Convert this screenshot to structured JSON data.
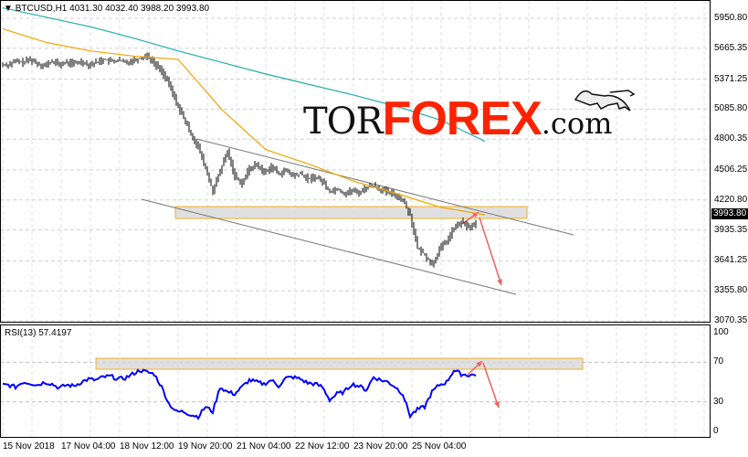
{
  "chart_data": [
    {
      "type": "bar",
      "symbol_header": "BTCUSD,H1  4031.30 4032.40 3988.20 3993.80",
      "symbol": "BTCUSD",
      "timeframe": "H1",
      "ohlc": {
        "open": 4031.3,
        "high": 4032.4,
        "low": 3988.2,
        "close": 3993.8
      },
      "current_price_label": "3993.80",
      "y_ticks": [
        "5950.80",
        "5665.35",
        "5371.25",
        "5085.80",
        "4800.35",
        "4506.25",
        "4220.80",
        "3935.35",
        "3641.25",
        "3355.80",
        "3070.35"
      ],
      "ylim": [
        3070.35,
        5950.8
      ],
      "grid": true,
      "step_hours": 4,
      "close": [
        5510,
        5540,
        5530,
        5560,
        5520,
        5500,
        5540,
        5510,
        5530,
        5520,
        5540,
        5510,
        5530,
        5560,
        5540,
        5550,
        5530,
        5550,
        5570,
        5600,
        5520,
        5450,
        5320,
        5150,
        5000,
        4850,
        4720,
        4520,
        4300,
        4500,
        4680,
        4450,
        4380,
        4520,
        4560,
        4480,
        4540,
        4470,
        4500,
        4450,
        4470,
        4420,
        4440,
        4400,
        4300,
        4330,
        4280,
        4310,
        4290,
        4340,
        4360,
        4320,
        4290,
        4270,
        4220,
        4080,
        3760,
        3700,
        3600,
        3750,
        3830,
        3950,
        4010,
        3960,
        3993.8
      ],
      "ma_fast": [
        5850,
        5720,
        5640,
        5590,
        5560,
        5080,
        4700,
        4560,
        4400,
        4280,
        4150,
        4080
      ],
      "ma_slow": [
        6050,
        5960,
        5870,
        5760,
        5640,
        5530,
        5420,
        5320,
        5220,
        5110,
        4980,
        4780
      ],
      "ma_step_hours": 24,
      "colors": {
        "bars": "#000000",
        "ma_fast": "#f0a500",
        "ma_slow": "#20b0a8",
        "arrows": "#f06060",
        "zone": "#d8d8d8",
        "zone_border": "#f0b020"
      }
    },
    {
      "type": "line",
      "label": "RSI(13) 57.4197",
      "y_ticks": [
        "100",
        "70",
        "30",
        "0"
      ],
      "ylim": [
        0,
        100
      ],
      "levels": [
        70,
        30
      ],
      "step_hours": 4,
      "values": [
        47,
        45,
        50,
        49,
        47,
        50,
        48,
        44,
        47,
        46,
        50,
        53,
        52,
        55,
        56,
        53,
        54,
        58,
        62,
        60,
        58,
        45,
        28,
        20,
        20,
        17,
        15,
        25,
        20,
        45,
        40,
        38,
        45,
        52,
        50,
        48,
        52,
        46,
        54,
        55,
        53,
        49,
        48,
        45,
        32,
        38,
        40,
        48,
        46,
        42,
        55,
        52,
        50,
        45,
        38,
        16,
        22,
        25,
        40,
        47,
        50,
        62,
        58,
        57,
        57.42
      ],
      "color": "#0000ff"
    }
  ],
  "x_ticks": [
    "15 Nov 2018",
    "17 Nov 04:00",
    "18 Nov 12:00",
    "19 Nov 20:00",
    "21 Nov 04:00",
    "22 Nov 12:00",
    "23 Nov 20:00",
    "25 Nov 04:00"
  ],
  "logo": {
    "part1": "TOR",
    "part2": "FOREX",
    "part3": ".com"
  }
}
